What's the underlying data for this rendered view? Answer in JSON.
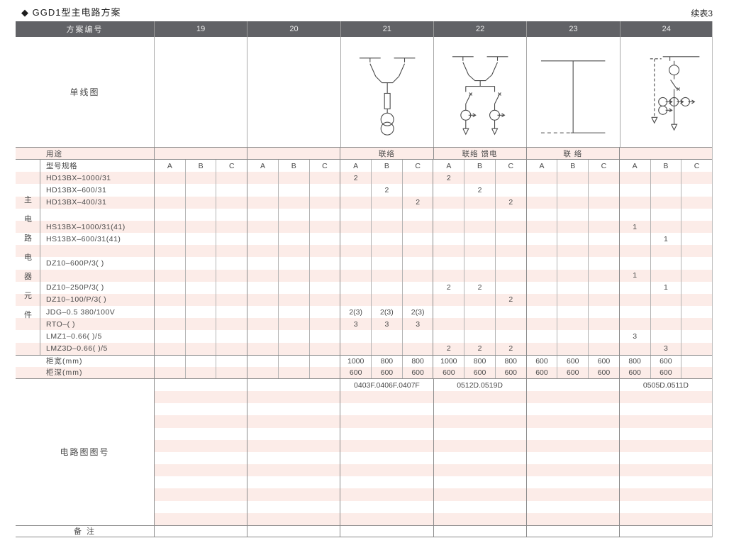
{
  "title": "◆ GGD1型主电路方案",
  "continuation": "续表3",
  "header": {
    "label": "方案编号",
    "columns": [
      "19",
      "20",
      "21",
      "22",
      "23",
      "24"
    ]
  },
  "diagram_row": {
    "label": "单线图",
    "diagrams": [
      "",
      "",
      "two-bus-switches-fuse-voltage-transformer",
      "two-bus-switches-two-breaker-feeders",
      "bus-tie-link",
      "metering-feeder-with-current-transformers"
    ]
  },
  "purpose_row": {
    "label": "用途",
    "values": [
      "",
      "",
      "联络",
      "联络 馈电",
      "联 络",
      ""
    ]
  },
  "subheader_row": {
    "label": "型号规格",
    "sub_columns": [
      "A",
      "B",
      "C"
    ]
  },
  "side_label": "主电路电器元件",
  "component_rows": [
    {
      "label": "HD13BX–1000/31",
      "values": [
        "",
        "",
        "",
        "",
        "",
        "",
        "2",
        "",
        "",
        "2",
        "",
        "",
        "",
        "",
        "",
        "",
        "",
        ""
      ]
    },
    {
      "label": "HD13BX–600/31",
      "values": [
        "",
        "",
        "",
        "",
        "",
        "",
        "",
        "2",
        "",
        "",
        "2",
        "",
        "",
        "",
        "",
        "",
        "",
        ""
      ]
    },
    {
      "label": "HD13BX–400/31",
      "values": [
        "",
        "",
        "",
        "",
        "",
        "",
        "",
        "",
        "2",
        "",
        "",
        "2",
        "",
        "",
        "",
        "",
        "",
        ""
      ]
    },
    {
      "label": "",
      "values": [
        "",
        "",
        "",
        "",
        "",
        "",
        "",
        "",
        "",
        "",
        "",
        "",
        "",
        "",
        "",
        "",
        "",
        ""
      ]
    },
    {
      "label": "HS13BX–1000/31(41)",
      "values": [
        "",
        "",
        "",
        "",
        "",
        "",
        "",
        "",
        "",
        "",
        "",
        "",
        "",
        "",
        "",
        "1",
        "",
        ""
      ]
    },
    {
      "label": "HS13BX–600/31(41)",
      "values": [
        "",
        "",
        "",
        "",
        "",
        "",
        "",
        "",
        "",
        "",
        "",
        "",
        "",
        "",
        "",
        "",
        "1",
        ""
      ]
    },
    {
      "label": "",
      "values": [
        "",
        "",
        "",
        "",
        "",
        "",
        "",
        "",
        "",
        "",
        "",
        "",
        "",
        "",
        "",
        "",
        "",
        ""
      ]
    },
    {
      "label": "DZ10–600P/3(  )",
      "values": [
        "",
        "",
        "",
        "",
        "",
        "",
        "",
        "",
        "",
        "",
        "",
        "",
        "",
        "",
        "",
        "",
        "",
        ""
      ]
    },
    {
      "label": "",
      "values": [
        "",
        "",
        "",
        "",
        "",
        "",
        "",
        "",
        "",
        "",
        "",
        "",
        "",
        "",
        "",
        "1",
        "",
        ""
      ]
    },
    {
      "label": "DZ10–250P/3(  )",
      "values": [
        "",
        "",
        "",
        "",
        "",
        "",
        "",
        "",
        "",
        "2",
        "2",
        "",
        "",
        "",
        "",
        "",
        "1",
        ""
      ]
    },
    {
      "label": "DZ10–100/P/3(  )",
      "values": [
        "",
        "",
        "",
        "",
        "",
        "",
        "",
        "",
        "",
        "",
        "",
        "2",
        "",
        "",
        "",
        "",
        "",
        ""
      ]
    },
    {
      "label": "JDG–0.5 380/100V",
      "values": [
        "",
        "",
        "",
        "",
        "",
        "",
        "2(3)",
        "2(3)",
        "2(3)",
        "",
        "",
        "",
        "",
        "",
        "",
        "",
        "",
        ""
      ]
    },
    {
      "label": "RTO–(  )",
      "values": [
        "",
        "",
        "",
        "",
        "",
        "",
        "3",
        "3",
        "3",
        "",
        "",
        "",
        "",
        "",
        "",
        "",
        "",
        ""
      ]
    },
    {
      "label": "LMZ1–0.66(  )/5",
      "values": [
        "",
        "",
        "",
        "",
        "",
        "",
        "",
        "",
        "",
        "",
        "",
        "",
        "",
        "",
        "",
        "3",
        "",
        ""
      ]
    },
    {
      "label": "LMZ3D–0.66(  )/5",
      "values": [
        "",
        "",
        "",
        "",
        "",
        "",
        "",
        "",
        "",
        "2",
        "2",
        "2",
        "",
        "",
        "",
        "",
        "3",
        ""
      ]
    }
  ],
  "width_row": {
    "label": "柜宽(mm)",
    "values": [
      "",
      "",
      "",
      "",
      "",
      "",
      "1000",
      "800",
      "800",
      "1000",
      "800",
      "800",
      "600",
      "600",
      "600",
      "800",
      "600",
      ""
    ]
  },
  "depth_row": {
    "label": "柜深(mm)",
    "values": [
      "",
      "",
      "",
      "",
      "",
      "",
      "600",
      "600",
      "600",
      "600",
      "600",
      "600",
      "600",
      "600",
      "600",
      "600",
      "600",
      ""
    ]
  },
  "figure_section": {
    "label": "电路图图号",
    "values": [
      "",
      "",
      "0403F.0406F.0407F",
      "0512D.0519D",
      "",
      "0505D.0511D"
    ],
    "stripe_rows": 12
  },
  "remark_row": {
    "label": "备 注"
  },
  "colors": {
    "header_bg": "#616266",
    "stripe_pink": "#fcece8",
    "rule_gray": "#8c8c8c"
  }
}
